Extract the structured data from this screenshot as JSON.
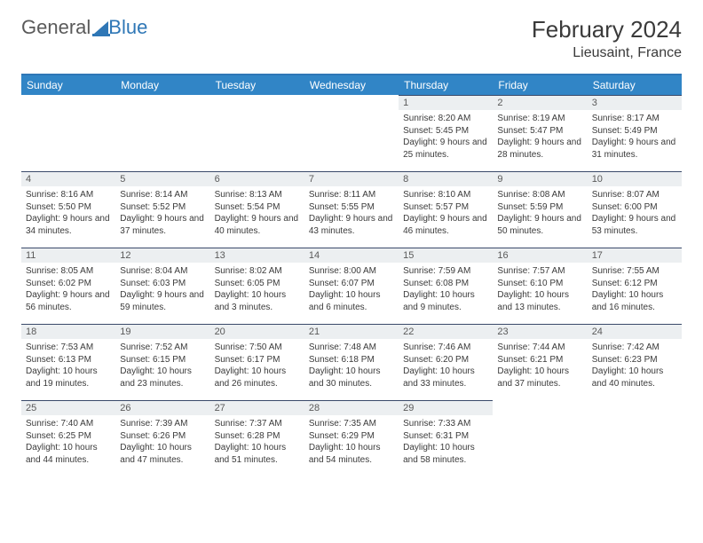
{
  "logo": {
    "part1": "General",
    "part2": "Blue"
  },
  "title": "February 2024",
  "location": "Lieusaint, France",
  "weekday_headers": [
    "Sunday",
    "Monday",
    "Tuesday",
    "Wednesday",
    "Thursday",
    "Friday",
    "Saturday"
  ],
  "colors": {
    "header_bg": "#3185c6",
    "header_text": "#ffffff",
    "daynum_bg": "#eceff1",
    "border_top": "#2f77b6",
    "row_divider": "#3a4a6a"
  },
  "grid_leading_blanks": 4,
  "days": [
    {
      "n": "1",
      "sunrise": "8:20 AM",
      "sunset": "5:45 PM",
      "dl": "9 hours and 25 minutes."
    },
    {
      "n": "2",
      "sunrise": "8:19 AM",
      "sunset": "5:47 PM",
      "dl": "9 hours and 28 minutes."
    },
    {
      "n": "3",
      "sunrise": "8:17 AM",
      "sunset": "5:49 PM",
      "dl": "9 hours and 31 minutes."
    },
    {
      "n": "4",
      "sunrise": "8:16 AM",
      "sunset": "5:50 PM",
      "dl": "9 hours and 34 minutes."
    },
    {
      "n": "5",
      "sunrise": "8:14 AM",
      "sunset": "5:52 PM",
      "dl": "9 hours and 37 minutes."
    },
    {
      "n": "6",
      "sunrise": "8:13 AM",
      "sunset": "5:54 PM",
      "dl": "9 hours and 40 minutes."
    },
    {
      "n": "7",
      "sunrise": "8:11 AM",
      "sunset": "5:55 PM",
      "dl": "9 hours and 43 minutes."
    },
    {
      "n": "8",
      "sunrise": "8:10 AM",
      "sunset": "5:57 PM",
      "dl": "9 hours and 46 minutes."
    },
    {
      "n": "9",
      "sunrise": "8:08 AM",
      "sunset": "5:59 PM",
      "dl": "9 hours and 50 minutes."
    },
    {
      "n": "10",
      "sunrise": "8:07 AM",
      "sunset": "6:00 PM",
      "dl": "9 hours and 53 minutes."
    },
    {
      "n": "11",
      "sunrise": "8:05 AM",
      "sunset": "6:02 PM",
      "dl": "9 hours and 56 minutes."
    },
    {
      "n": "12",
      "sunrise": "8:04 AM",
      "sunset": "6:03 PM",
      "dl": "9 hours and 59 minutes."
    },
    {
      "n": "13",
      "sunrise": "8:02 AM",
      "sunset": "6:05 PM",
      "dl": "10 hours and 3 minutes."
    },
    {
      "n": "14",
      "sunrise": "8:00 AM",
      "sunset": "6:07 PM",
      "dl": "10 hours and 6 minutes."
    },
    {
      "n": "15",
      "sunrise": "7:59 AM",
      "sunset": "6:08 PM",
      "dl": "10 hours and 9 minutes."
    },
    {
      "n": "16",
      "sunrise": "7:57 AM",
      "sunset": "6:10 PM",
      "dl": "10 hours and 13 minutes."
    },
    {
      "n": "17",
      "sunrise": "7:55 AM",
      "sunset": "6:12 PM",
      "dl": "10 hours and 16 minutes."
    },
    {
      "n": "18",
      "sunrise": "7:53 AM",
      "sunset": "6:13 PM",
      "dl": "10 hours and 19 minutes."
    },
    {
      "n": "19",
      "sunrise": "7:52 AM",
      "sunset": "6:15 PM",
      "dl": "10 hours and 23 minutes."
    },
    {
      "n": "20",
      "sunrise": "7:50 AM",
      "sunset": "6:17 PM",
      "dl": "10 hours and 26 minutes."
    },
    {
      "n": "21",
      "sunrise": "7:48 AM",
      "sunset": "6:18 PM",
      "dl": "10 hours and 30 minutes."
    },
    {
      "n": "22",
      "sunrise": "7:46 AM",
      "sunset": "6:20 PM",
      "dl": "10 hours and 33 minutes."
    },
    {
      "n": "23",
      "sunrise": "7:44 AM",
      "sunset": "6:21 PM",
      "dl": "10 hours and 37 minutes."
    },
    {
      "n": "24",
      "sunrise": "7:42 AM",
      "sunset": "6:23 PM",
      "dl": "10 hours and 40 minutes."
    },
    {
      "n": "25",
      "sunrise": "7:40 AM",
      "sunset": "6:25 PM",
      "dl": "10 hours and 44 minutes."
    },
    {
      "n": "26",
      "sunrise": "7:39 AM",
      "sunset": "6:26 PM",
      "dl": "10 hours and 47 minutes."
    },
    {
      "n": "27",
      "sunrise": "7:37 AM",
      "sunset": "6:28 PM",
      "dl": "10 hours and 51 minutes."
    },
    {
      "n": "28",
      "sunrise": "7:35 AM",
      "sunset": "6:29 PM",
      "dl": "10 hours and 54 minutes."
    },
    {
      "n": "29",
      "sunrise": "7:33 AM",
      "sunset": "6:31 PM",
      "dl": "10 hours and 58 minutes."
    }
  ],
  "labels": {
    "sunrise": "Sunrise:",
    "sunset": "Sunset:",
    "daylight": "Daylight:"
  }
}
